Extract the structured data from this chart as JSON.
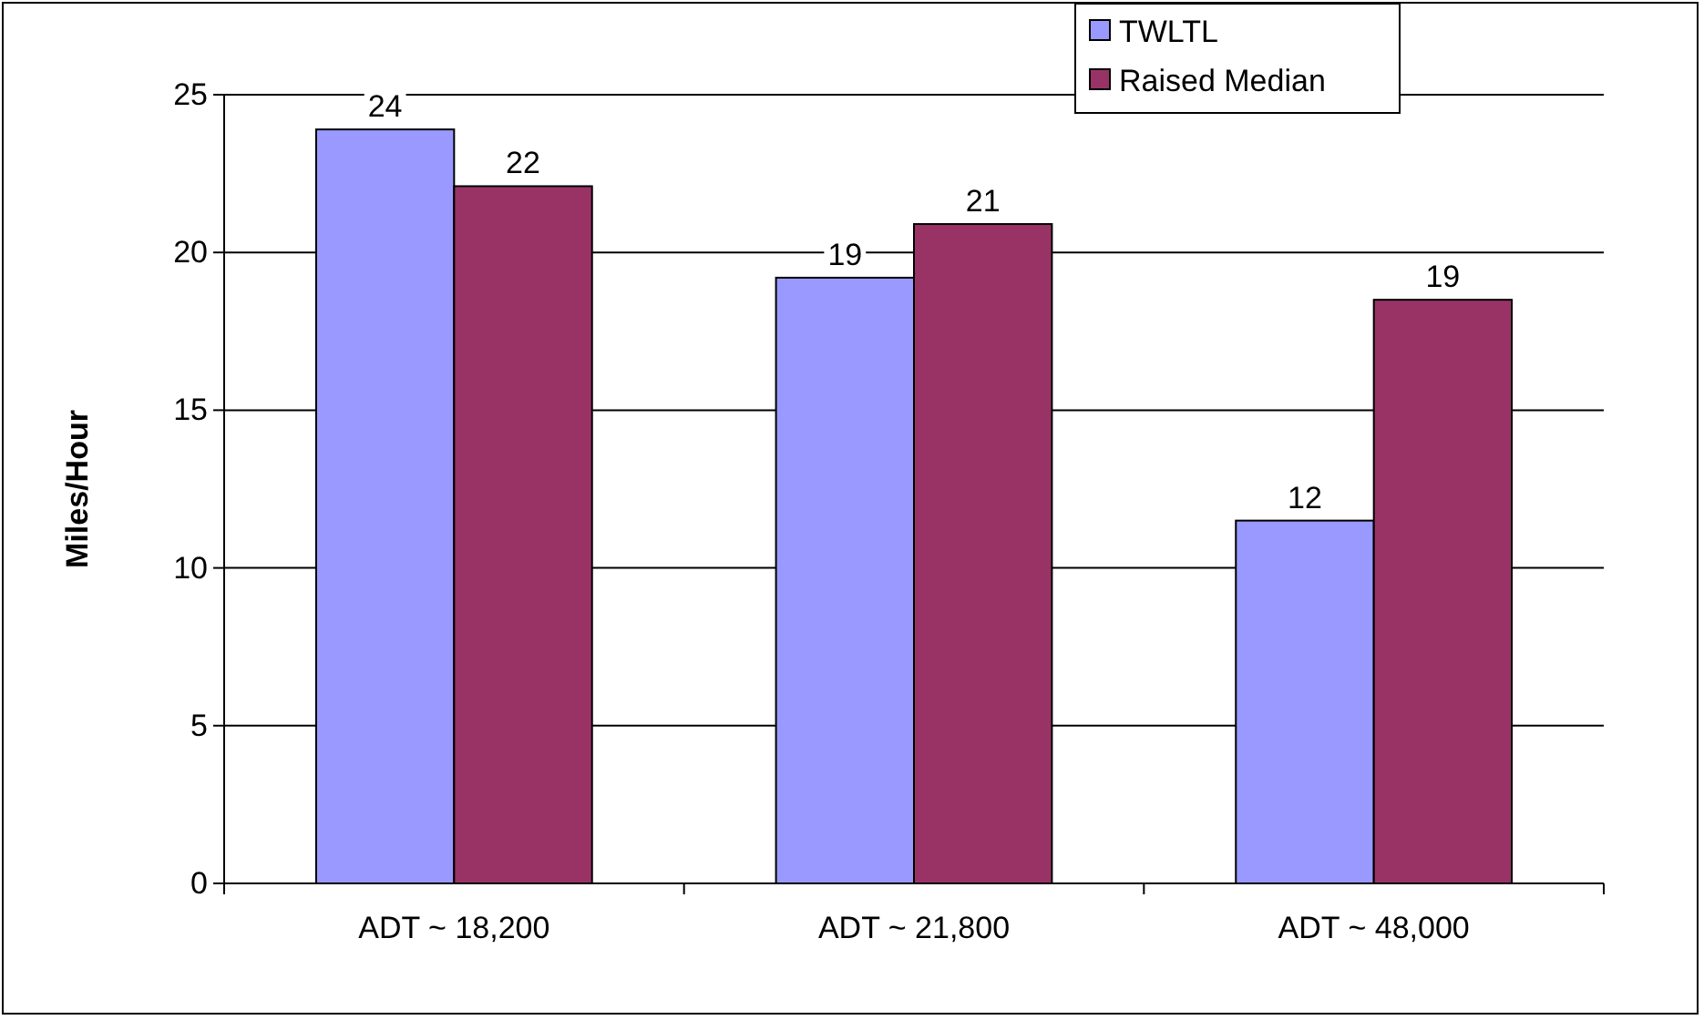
{
  "chart_data": {
    "type": "bar",
    "ylabel": "Miles/Hour",
    "categories": [
      "ADT ~ 18,200",
      "ADT ~ 21,800",
      "ADT ~ 48,000"
    ],
    "series": [
      {
        "name": "TWLTL",
        "color": "#9999ff",
        "values": [
          23.9,
          19.2,
          11.5
        ],
        "value_labels": [
          "24",
          "19",
          "12"
        ]
      },
      {
        "name": "Raised Median",
        "color": "#993366",
        "values": [
          22.1,
          20.9,
          18.5
        ],
        "value_labels": [
          "22",
          "21",
          "19"
        ]
      }
    ],
    "ylim": [
      0,
      25
    ],
    "yticks": [
      0,
      5,
      10,
      15,
      20,
      25
    ],
    "grid": "y",
    "legend": "top right"
  }
}
